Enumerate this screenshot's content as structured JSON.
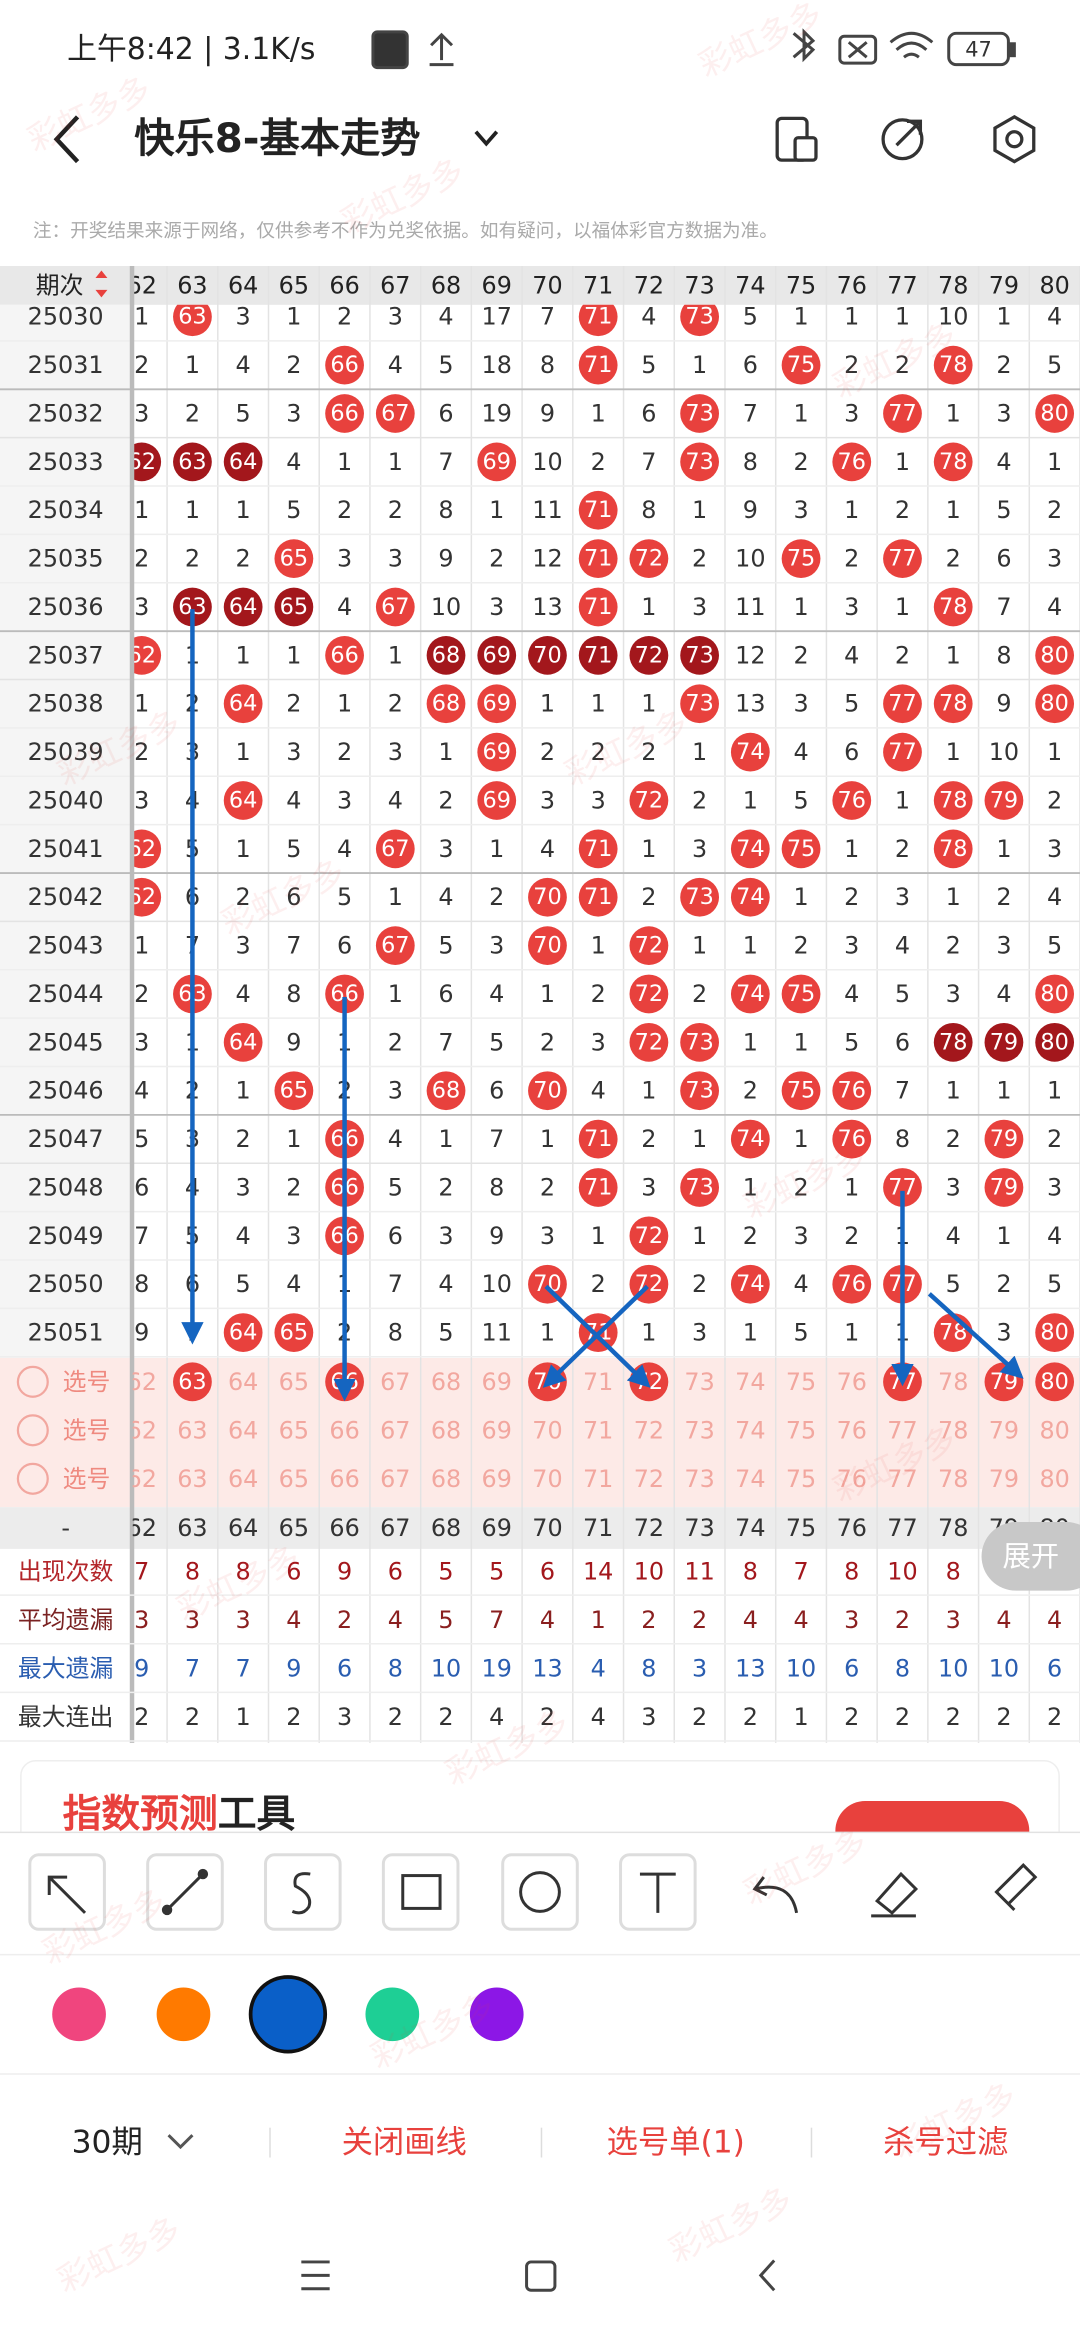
{
  "status_bar": {
    "time": "上午8:42 | 3.1K/s",
    "battery": "47"
  },
  "header": {
    "title": "快乐8-基本走势"
  },
  "watermark": "彩虹多多",
  "notice": "注：开奖结果来源于网络，仅供参考不作为兑奖依据。如有疑问，以福体彩官方数据为准。",
  "table": {
    "period_label": "期次",
    "columns": [
      62,
      63,
      64,
      65,
      66,
      67,
      68,
      69,
      70,
      71,
      72,
      73,
      74,
      75,
      76,
      77,
      78,
      79,
      80
    ],
    "rows": [
      {
        "period": "25030",
        "cells": [
          1,
          63,
          3,
          1,
          2,
          3,
          4,
          17,
          7,
          71,
          4,
          73,
          5,
          1,
          1,
          1,
          10,
          1,
          4
        ]
      },
      {
        "period": "25031",
        "cells": [
          2,
          1,
          4,
          2,
          66,
          4,
          5,
          18,
          8,
          71,
          5,
          1,
          6,
          75,
          2,
          2,
          78,
          2,
          5
        ]
      },
      {
        "period": "25032",
        "cells": [
          3,
          2,
          5,
          3,
          66,
          67,
          6,
          19,
          9,
          1,
          6,
          73,
          7,
          1,
          3,
          77,
          1,
          3,
          80
        ]
      },
      {
        "period": "25033",
        "cells": [
          62,
          63,
          64,
          4,
          1,
          1,
          7,
          69,
          10,
          2,
          7,
          73,
          8,
          2,
          76,
          1,
          78,
          4,
          1
        ]
      },
      {
        "period": "25034",
        "cells": [
          1,
          1,
          1,
          5,
          2,
          2,
          8,
          1,
          11,
          71,
          8,
          1,
          9,
          3,
          1,
          2,
          1,
          5,
          2
        ]
      },
      {
        "period": "25035",
        "cells": [
          2,
          2,
          2,
          65,
          3,
          3,
          9,
          2,
          12,
          71,
          72,
          2,
          10,
          75,
          2,
          77,
          2,
          6,
          3
        ]
      },
      {
        "period": "25036",
        "cells": [
          3,
          63,
          64,
          65,
          4,
          67,
          10,
          3,
          13,
          71,
          1,
          3,
          11,
          1,
          3,
          1,
          78,
          7,
          4
        ]
      },
      {
        "period": "25037",
        "cells": [
          62,
          1,
          1,
          1,
          66,
          1,
          68,
          69,
          70,
          71,
          72,
          73,
          12,
          2,
          4,
          2,
          1,
          8,
          80
        ]
      },
      {
        "period": "25038",
        "cells": [
          1,
          2,
          64,
          2,
          1,
          2,
          68,
          69,
          1,
          1,
          1,
          73,
          13,
          3,
          5,
          77,
          78,
          9,
          80
        ]
      },
      {
        "period": "25039",
        "cells": [
          2,
          3,
          1,
          3,
          2,
          3,
          1,
          69,
          2,
          2,
          2,
          1,
          74,
          4,
          6,
          77,
          1,
          10,
          1
        ]
      },
      {
        "period": "25040",
        "cells": [
          3,
          4,
          64,
          4,
          3,
          4,
          2,
          69,
          3,
          3,
          72,
          2,
          1,
          5,
          76,
          1,
          78,
          79,
          2
        ]
      },
      {
        "period": "25041",
        "cells": [
          62,
          5,
          1,
          5,
          4,
          67,
          3,
          1,
          4,
          71,
          1,
          3,
          74,
          75,
          1,
          2,
          78,
          1,
          3
        ]
      },
      {
        "period": "25042",
        "cells": [
          62,
          6,
          2,
          6,
          5,
          1,
          4,
          2,
          70,
          71,
          2,
          73,
          74,
          1,
          2,
          3,
          1,
          2,
          4
        ]
      },
      {
        "period": "25043",
        "cells": [
          1,
          7,
          3,
          7,
          6,
          67,
          5,
          3,
          70,
          1,
          72,
          1,
          1,
          2,
          3,
          4,
          2,
          3,
          5
        ]
      },
      {
        "period": "25044",
        "cells": [
          2,
          63,
          4,
          8,
          66,
          1,
          6,
          4,
          1,
          2,
          72,
          2,
          74,
          75,
          4,
          5,
          3,
          4,
          80
        ]
      },
      {
        "period": "25045",
        "cells": [
          3,
          1,
          64,
          9,
          1,
          2,
          7,
          5,
          2,
          3,
          72,
          73,
          1,
          1,
          5,
          6,
          78,
          79,
          80
        ]
      },
      {
        "period": "25046",
        "cells": [
          4,
          2,
          1,
          65,
          2,
          3,
          68,
          6,
          70,
          4,
          1,
          73,
          2,
          75,
          76,
          7,
          1,
          1,
          1
        ]
      },
      {
        "period": "25047",
        "cells": [
          5,
          3,
          2,
          1,
          66,
          4,
          1,
          7,
          1,
          71,
          2,
          1,
          74,
          1,
          76,
          8,
          2,
          79,
          2
        ]
      },
      {
        "period": "25048",
        "cells": [
          6,
          4,
          3,
          2,
          66,
          5,
          2,
          8,
          2,
          71,
          3,
          73,
          1,
          2,
          1,
          77,
          3,
          79,
          3
        ]
      },
      {
        "period": "25049",
        "cells": [
          7,
          5,
          4,
          3,
          66,
          6,
          3,
          9,
          3,
          1,
          72,
          1,
          2,
          3,
          2,
          1,
          4,
          1,
          4
        ]
      },
      {
        "period": "25050",
        "cells": [
          8,
          6,
          5,
          4,
          1,
          7,
          4,
          10,
          70,
          2,
          72,
          2,
          74,
          4,
          76,
          77,
          5,
          2,
          5
        ]
      },
      {
        "period": "25051",
        "cells": [
          9,
          7,
          64,
          65,
          2,
          8,
          5,
          11,
          1,
          71,
          1,
          3,
          1,
          5,
          1,
          1,
          78,
          3,
          80
        ]
      }
    ],
    "pick_rows": [
      {
        "label": "选号",
        "selected": [
          false,
          true,
          false,
          false,
          true,
          false,
          false,
          false,
          true,
          false,
          true,
          false,
          false,
          false,
          false,
          true,
          false,
          true,
          true
        ]
      },
      {
        "label": "选号",
        "selected": [
          false,
          false,
          false,
          false,
          false,
          false,
          false,
          false,
          false,
          false,
          false,
          false,
          false,
          false,
          false,
          false,
          false,
          false,
          false
        ]
      },
      {
        "label": "选号",
        "selected": [
          false,
          false,
          false,
          false,
          false,
          false,
          false,
          false,
          false,
          false,
          false,
          false,
          false,
          false,
          false,
          false,
          false,
          false,
          false
        ]
      }
    ],
    "stats_label": "-",
    "stats": [
      {
        "label": "出现次数",
        "values": [
          7,
          8,
          8,
          6,
          9,
          6,
          5,
          5,
          6,
          14,
          10,
          11,
          8,
          7,
          8,
          10,
          8,
          null,
          null
        ]
      },
      {
        "label": "平均遗漏",
        "values": [
          3,
          3,
          3,
          4,
          2,
          4,
          5,
          7,
          4,
          1,
          2,
          2,
          4,
          4,
          3,
          2,
          3,
          4,
          4
        ]
      },
      {
        "label": "最大遗漏",
        "values": [
          9,
          7,
          7,
          9,
          6,
          8,
          10,
          19,
          13,
          4,
          8,
          3,
          13,
          10,
          6,
          8,
          10,
          10,
          6
        ]
      },
      {
        "label": "最大连出",
        "values": [
          2,
          2,
          1,
          2,
          3,
          2,
          2,
          4,
          2,
          4,
          3,
          2,
          2,
          1,
          2,
          2,
          2,
          2,
          2
        ]
      }
    ],
    "expand": "展开"
  },
  "banner": {
    "title_red": "指数预测",
    "title_black": "工具"
  },
  "tabs": {
    "period": "30期",
    "items": [
      "关闭画线",
      "选号单(1)",
      "杀号过滤"
    ]
  }
}
